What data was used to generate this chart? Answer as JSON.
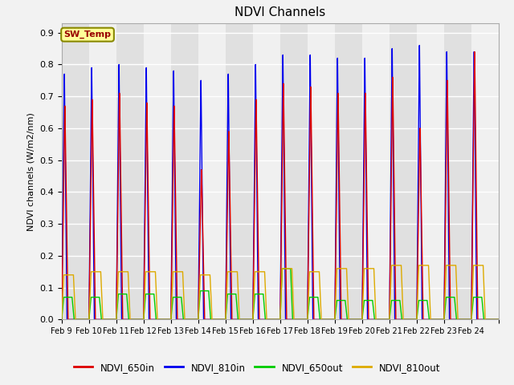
{
  "title": "NDVI Channels",
  "ylabel": "NDVI channels (W/m2/nm)",
  "ylim": [
    0.0,
    0.93
  ],
  "yticks": [
    0.0,
    0.1,
    0.2,
    0.3,
    0.4,
    0.5,
    0.6,
    0.7,
    0.8,
    0.9
  ],
  "bg_color": "#f0f0f0",
  "plot_bg_even": "#e8e8e8",
  "plot_bg_odd": "#f8f8f8",
  "series": {
    "NDVI_650in": {
      "color": "#dd0000",
      "lw": 1.0
    },
    "NDVI_810in": {
      "color": "#0000ee",
      "lw": 1.0
    },
    "NDVI_650out": {
      "color": "#00cc00",
      "lw": 1.0
    },
    "NDVI_810out": {
      "color": "#ddaa00",
      "lw": 1.0
    }
  },
  "date_labels": [
    "Feb 9",
    "Feb 10",
    "Feb 11",
    "Feb 12",
    "Feb 13",
    "Feb 14",
    "Feb 15",
    "Feb 16",
    "Feb 17",
    "Feb 18",
    "Feb 19",
    "Feb 20",
    "Feb 21",
    "Feb 22",
    "Feb 23",
    "Feb 24"
  ],
  "annotation": "SW_Temp",
  "annotation_color": "#990000",
  "annotation_bg": "#ffff99",
  "legend_entries": [
    "NDVI_650in",
    "NDVI_810in",
    "NDVI_650out",
    "NDVI_810out"
  ],
  "legend_colors": [
    "#dd0000",
    "#0000ee",
    "#00cc00",
    "#ddaa00"
  ],
  "peaks_810in": [
    0.77,
    0.79,
    0.8,
    0.79,
    0.78,
    0.75,
    0.77,
    0.8,
    0.83,
    0.83,
    0.82,
    0.82,
    0.85,
    0.86,
    0.84,
    0.84
  ],
  "peaks_650in": [
    0.67,
    0.69,
    0.71,
    0.68,
    0.67,
    0.47,
    0.59,
    0.69,
    0.74,
    0.73,
    0.71,
    0.71,
    0.76,
    0.6,
    0.75,
    0.84
  ],
  "peaks_650out": [
    0.07,
    0.07,
    0.08,
    0.08,
    0.07,
    0.09,
    0.08,
    0.08,
    0.16,
    0.07,
    0.06,
    0.06,
    0.06,
    0.06,
    0.07,
    0.07
  ],
  "peaks_810out": [
    0.14,
    0.15,
    0.15,
    0.15,
    0.15,
    0.14,
    0.15,
    0.15,
    0.16,
    0.15,
    0.16,
    0.16,
    0.17,
    0.17,
    0.17,
    0.17
  ],
  "n_days": 16,
  "ppd": 200
}
